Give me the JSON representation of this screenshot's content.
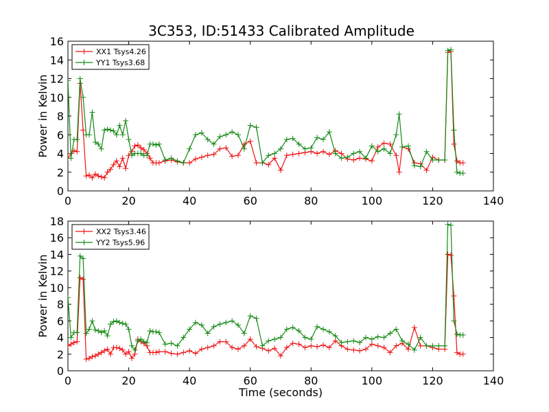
{
  "title": "3C353, ID:51433 Calibrated Amplitude",
  "colors": {
    "xx": "#ee1111",
    "yy": "#118811"
  },
  "chart_data": [
    {
      "type": "line",
      "title": "3C353, ID:51433 Calibrated Amplitude",
      "xlabel": "",
      "ylabel": "Power in Kelvin",
      "xlim": [
        0,
        140
      ],
      "ylim": [
        0,
        16
      ],
      "xticks": [
        "0",
        "20",
        "40",
        "60",
        "80",
        "100",
        "120",
        "140"
      ],
      "yticks": [
        "0",
        "2",
        "4",
        "6",
        "8",
        "10",
        "12",
        "14",
        "16"
      ],
      "legend_position": "top-left",
      "series": [
        {
          "name": "XX1 Tsys4.26",
          "color": "#ee1111",
          "x": [
            0,
            1,
            2,
            3,
            4,
            5,
            6,
            7,
            8,
            9,
            10,
            11,
            12,
            13,
            14,
            15,
            16,
            17,
            18,
            19,
            20,
            21,
            22,
            23,
            24,
            25,
            26,
            27,
            28,
            29,
            30,
            32,
            34,
            36,
            38,
            40,
            42,
            44,
            46,
            48,
            50,
            52,
            54,
            56,
            58,
            60,
            62,
            64,
            66,
            68,
            70,
            72,
            74,
            76,
            78,
            80,
            82,
            84,
            86,
            88,
            90,
            92,
            94,
            96,
            98,
            100,
            102,
            104,
            106,
            108,
            109,
            110,
            112,
            114,
            116,
            118,
            120,
            122,
            124,
            125,
            126,
            127,
            128,
            129,
            130
          ],
          "values": [
            3.5,
            4.0,
            4.3,
            4.2,
            11.5,
            6.5,
            1.6,
            1.7,
            1.4,
            1.8,
            1.6,
            1.5,
            1.4,
            2.0,
            2.3,
            2.8,
            3.2,
            2.6,
            3.5,
            2.4,
            3.8,
            4.2,
            4.8,
            4.9,
            4.6,
            4.4,
            4.0,
            3.5,
            3.0,
            3.0,
            3.0,
            3.2,
            3.3,
            3.1,
            3.0,
            3.0,
            3.4,
            3.6,
            3.8,
            3.9,
            4.5,
            4.6,
            3.7,
            3.8,
            5.0,
            5.3,
            3.0,
            3.0,
            2.8,
            3.5,
            2.2,
            3.8,
            3.9,
            4.0,
            4.1,
            4.2,
            4.0,
            4.2,
            3.9,
            4.3,
            4.0,
            3.4,
            3.3,
            3.5,
            3.4,
            3.2,
            4.7,
            5.1,
            5.0,
            3.8,
            2.0,
            4.7,
            4.5,
            3.0,
            2.9,
            2.2,
            3.6,
            3.3,
            3.3,
            14.8,
            14.9,
            5.0,
            3.2,
            3.0,
            3.0
          ]
        },
        {
          "name": "YY1 Tsys3.68",
          "color": "#118811",
          "x": [
            0,
            1,
            2,
            3,
            4,
            5,
            6,
            7,
            8,
            9,
            10,
            11,
            12,
            13,
            14,
            15,
            16,
            17,
            18,
            19,
            20,
            21,
            22,
            23,
            24,
            25,
            26,
            27,
            28,
            29,
            30,
            32,
            34,
            36,
            38,
            40,
            42,
            44,
            46,
            48,
            50,
            52,
            54,
            56,
            58,
            60,
            62,
            64,
            66,
            68,
            70,
            72,
            74,
            76,
            78,
            80,
            82,
            84,
            86,
            88,
            90,
            92,
            94,
            96,
            98,
            100,
            102,
            104,
            106,
            108,
            109,
            110,
            112,
            114,
            116,
            118,
            120,
            122,
            124,
            125,
            126,
            127,
            128,
            129,
            130
          ],
          "values": [
            11.8,
            3.5,
            5.5,
            5.5,
            12.0,
            10.0,
            6.0,
            6.0,
            8.4,
            5.2,
            5.0,
            4.5,
            6.5,
            6.6,
            6.5,
            6.4,
            6.0,
            7.0,
            6.0,
            7.5,
            5.5,
            3.8,
            4.0,
            4.0,
            4.0,
            3.8,
            3.8,
            5.0,
            5.0,
            4.9,
            5.0,
            3.3,
            3.5,
            3.2,
            3.0,
            4.5,
            6.0,
            6.2,
            5.5,
            5.0,
            5.8,
            6.0,
            6.3,
            6.0,
            4.5,
            7.0,
            6.8,
            3.0,
            3.8,
            4.0,
            4.5,
            5.5,
            5.6,
            5.0,
            4.5,
            4.6,
            5.7,
            5.5,
            6.3,
            4.0,
            3.5,
            3.6,
            4.0,
            4.2,
            3.5,
            4.8,
            4.2,
            4.5,
            4.0,
            6.0,
            8.2,
            4.7,
            4.8,
            2.7,
            2.6,
            4.2,
            3.3,
            3.3,
            3.3,
            15.0,
            15.1,
            6.5,
            2.0,
            1.9,
            1.9
          ]
        }
      ]
    },
    {
      "type": "line",
      "title": "",
      "xlabel": "Time (seconds)",
      "ylabel": "Power in Kelvin",
      "xlim": [
        0,
        140
      ],
      "ylim": [
        0,
        18
      ],
      "xticks": [
        "0",
        "20",
        "40",
        "60",
        "80",
        "100",
        "120",
        "140"
      ],
      "yticks": [
        "0",
        "2",
        "4",
        "6",
        "8",
        "10",
        "12",
        "14",
        "16",
        "18"
      ],
      "legend_position": "top-left",
      "series": [
        {
          "name": "XX2 Tsys3.46",
          "color": "#ee1111",
          "x": [
            0,
            1,
            2,
            3,
            4,
            5,
            6,
            7,
            8,
            9,
            10,
            11,
            12,
            13,
            14,
            15,
            16,
            17,
            18,
            19,
            20,
            21,
            22,
            23,
            24,
            25,
            26,
            27,
            28,
            29,
            30,
            32,
            34,
            36,
            38,
            40,
            42,
            44,
            46,
            48,
            50,
            52,
            54,
            56,
            58,
            60,
            62,
            64,
            66,
            68,
            70,
            72,
            74,
            76,
            78,
            80,
            82,
            84,
            86,
            88,
            90,
            92,
            94,
            96,
            98,
            100,
            102,
            104,
            106,
            108,
            110,
            112,
            114,
            116,
            118,
            120,
            122,
            124,
            125,
            126,
            127,
            128,
            129,
            130
          ],
          "values": [
            3.0,
            3.2,
            3.4,
            3.5,
            11.2,
            11.0,
            1.4,
            1.5,
            1.7,
            1.8,
            2.0,
            2.2,
            2.4,
            2.6,
            2.0,
            2.8,
            2.8,
            2.7,
            2.5,
            2.0,
            2.3,
            1.5,
            2.0,
            3.8,
            3.5,
            3.3,
            3.0,
            2.2,
            2.2,
            2.2,
            2.3,
            2.3,
            2.1,
            2.0,
            2.2,
            2.4,
            2.1,
            2.6,
            2.8,
            3.0,
            3.5,
            3.5,
            2.8,
            2.6,
            3.0,
            3.8,
            2.9,
            2.7,
            2.4,
            2.7,
            1.8,
            2.8,
            3.3,
            3.2,
            2.8,
            3.0,
            2.9,
            3.1,
            2.8,
            3.6,
            3.0,
            2.6,
            2.5,
            2.4,
            2.6,
            3.2,
            3.0,
            2.8,
            2.2,
            3.0,
            3.3,
            2.6,
            5.2,
            3.0,
            3.0,
            2.8,
            2.6,
            2.6,
            14.0,
            13.9,
            9.0,
            2.2,
            2.0,
            2.0
          ]
        },
        {
          "name": "YY2 Tsys5.96",
          "color": "#118811",
          "x": [
            0,
            1,
            2,
            3,
            4,
            5,
            6,
            7,
            8,
            9,
            10,
            11,
            12,
            13,
            14,
            15,
            16,
            17,
            18,
            19,
            20,
            21,
            22,
            23,
            24,
            25,
            26,
            27,
            28,
            29,
            30,
            32,
            34,
            36,
            38,
            40,
            42,
            44,
            46,
            48,
            50,
            52,
            54,
            56,
            58,
            60,
            62,
            64,
            66,
            68,
            70,
            72,
            74,
            76,
            78,
            80,
            82,
            84,
            86,
            88,
            90,
            92,
            94,
            96,
            98,
            100,
            102,
            104,
            106,
            108,
            110,
            112,
            114,
            116,
            118,
            120,
            122,
            124,
            125,
            126,
            127,
            128,
            129,
            130
          ],
          "values": [
            8.8,
            4.0,
            4.6,
            4.6,
            13.8,
            13.5,
            4.5,
            5.0,
            6.0,
            4.9,
            4.8,
            4.6,
            4.8,
            4.2,
            5.6,
            5.9,
            6.0,
            5.8,
            5.7,
            5.6,
            5.0,
            3.0,
            2.5,
            3.6,
            3.8,
            3.5,
            3.4,
            4.8,
            4.7,
            4.7,
            4.6,
            3.2,
            3.3,
            3.0,
            4.0,
            5.0,
            5.8,
            5.5,
            4.5,
            5.3,
            5.6,
            5.8,
            6.0,
            5.5,
            4.5,
            6.6,
            6.3,
            3.0,
            3.6,
            3.8,
            4.0,
            5.0,
            5.2,
            4.8,
            4.0,
            3.8,
            5.3,
            5.0,
            4.7,
            4.2,
            3.4,
            3.5,
            3.6,
            3.4,
            4.0,
            3.8,
            4.1,
            4.0,
            4.5,
            5.0,
            3.6,
            3.2,
            2.5,
            4.0,
            3.0,
            3.0,
            3.0,
            3.0,
            17.6,
            17.5,
            6.0,
            4.4,
            4.3,
            4.3
          ]
        }
      ]
    }
  ]
}
